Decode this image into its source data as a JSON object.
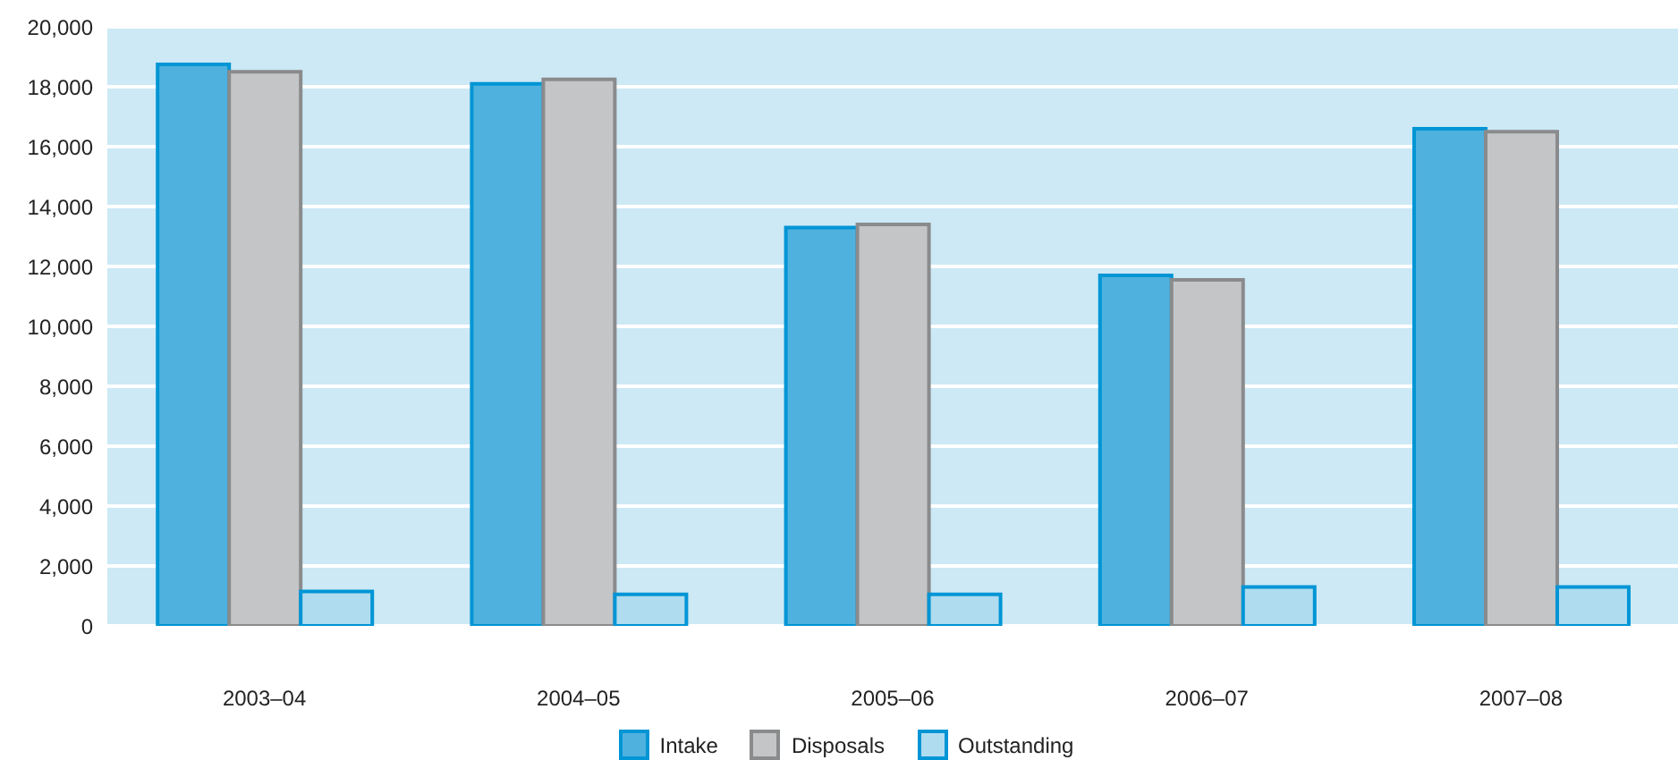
{
  "chart_data": {
    "type": "bar",
    "categories": [
      "2003–04",
      "2004–05",
      "2005–06",
      "2006–07",
      "2007–08"
    ],
    "series": [
      {
        "name": "Intake",
        "color": "#4fb1de",
        "values": [
          18750,
          18100,
          13300,
          11700,
          16600
        ]
      },
      {
        "name": "Disposals",
        "color": "#c4c5c7",
        "values": [
          18500,
          18250,
          13400,
          11550,
          16500
        ]
      },
      {
        "name": "Outstanding",
        "color": "#b0dcf0",
        "values": [
          1150,
          1050,
          1050,
          1300,
          1300
        ]
      }
    ],
    "ylim": [
      0,
      20000
    ],
    "yticks": [
      0,
      {
        "value": 2000,
        "label": "2,000"
      },
      {
        "value": 4000,
        "label": "4,000"
      },
      {
        "value": 6000,
        "label": "6,000"
      },
      {
        "value": 8000,
        "label": "8,000"
      },
      {
        "value": 10000,
        "label": "10,000"
      },
      {
        "value": 12000,
        "label": "12,000"
      },
      {
        "value": 14000,
        "label": "14,000"
      },
      {
        "value": 16000,
        "label": "16,000"
      },
      {
        "value": 18000,
        "label": "18,000"
      },
      {
        "value": 20000,
        "label": "20,000"
      }
    ],
    "grid": "y",
    "legend": "bottom"
  }
}
